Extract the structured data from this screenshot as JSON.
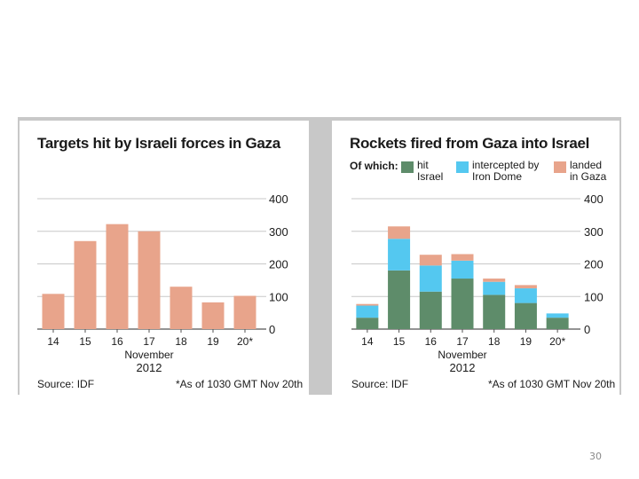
{
  "slide_number": "30",
  "chart_data": [
    {
      "type": "bar",
      "title": "Targets hit by Israeli forces in Gaza",
      "categories": [
        "14",
        "15",
        "16",
        "17",
        "18",
        "19",
        "20*"
      ],
      "values": [
        108,
        270,
        322,
        300,
        130,
        82,
        102
      ],
      "xlabel": "November",
      "xlabel_year": "2012",
      "ylim": [
        0,
        400
      ],
      "yticks": [
        "0",
        "100",
        "200",
        "300",
        "400"
      ],
      "ytick_values": [
        0,
        100,
        200,
        300,
        400
      ],
      "grid": true,
      "color": "#e8a48b",
      "source": "Source: IDF",
      "note": "*As of 1030 GMT Nov 20th"
    },
    {
      "type": "bar",
      "stacked": true,
      "title": "Rockets fired from Gaza into Israel",
      "categories": [
        "14",
        "15",
        "16",
        "17",
        "18",
        "19",
        "20*"
      ],
      "legend_title": "Of which:",
      "series": [
        {
          "name": "hit Israel",
          "name_lines": [
            "hit",
            "Israel"
          ],
          "color": "#5e8c6a",
          "values": [
            35,
            180,
            115,
            155,
            105,
            80,
            35
          ]
        },
        {
          "name": "intercepted by Iron Dome",
          "name_lines": [
            "intercepted by",
            "Iron Dome"
          ],
          "color": "#54c8f0",
          "values": [
            37,
            97,
            80,
            55,
            40,
            45,
            13
          ]
        },
        {
          "name": "landed in Gaza",
          "name_lines": [
            "landed",
            "in Gaza"
          ],
          "color": "#e8a48b",
          "values": [
            5,
            38,
            33,
            20,
            10,
            10,
            0
          ]
        }
      ],
      "xlabel": "November",
      "xlabel_year": "2012",
      "ylim": [
        0,
        400
      ],
      "yticks": [
        "0",
        "100",
        "200",
        "300",
        "400"
      ],
      "ytick_values": [
        0,
        100,
        200,
        300,
        400
      ],
      "grid": true,
      "source": "Source: IDF",
      "note": "*As of 1030 GMT Nov 20th"
    }
  ]
}
